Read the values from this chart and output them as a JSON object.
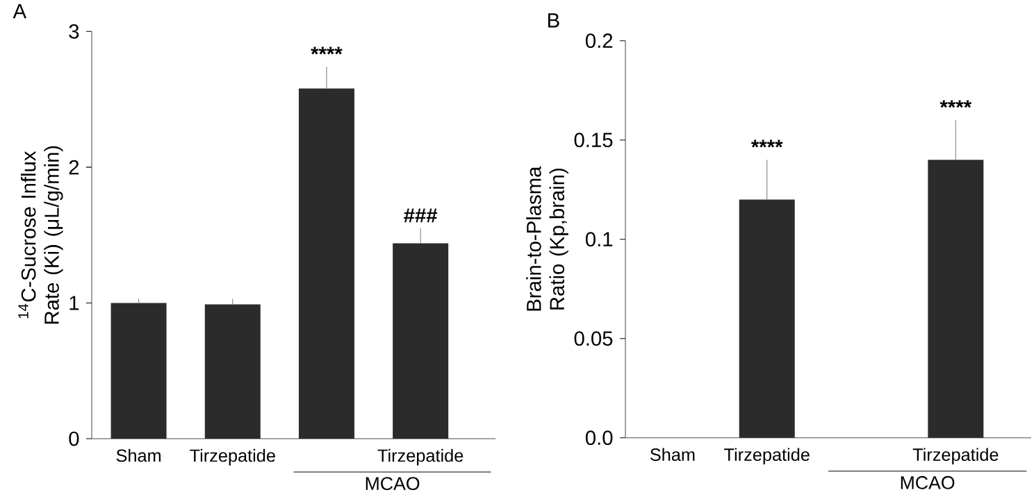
{
  "chart_data": [
    {
      "type": "bar",
      "title": "A",
      "ylabel": "$^{14}$C-Sucrose Influx Rate (Ki) (μL/g/min)",
      "categories": [
        "Sham",
        "Tirzepatide",
        null,
        "Tirzepatide"
      ],
      "values": [
        1.0,
        0.99,
        2.58,
        1.44
      ],
      "color": "#2b2b2b",
      "errors": [
        [
          1.0,
          1.03
        ],
        [
          0.99,
          1.03
        ],
        [
          2.58,
          2.74
        ],
        [
          1.44,
          1.55
        ]
      ],
      "value_labels": [
        null,
        null,
        "****",
        "###"
      ],
      "ylim": [
        0,
        3
      ],
      "yticks": [
        0,
        1,
        2,
        3
      ],
      "annotations": [
        "MCAO"
      ]
    },
    {
      "type": "bar",
      "title": "B",
      "ylabel": "Brain-to-Plasma Ratio (Kp,brain)",
      "categories": [
        "Sham",
        "Tirzepatide",
        null,
        "Tirzepatide"
      ],
      "values": [
        null,
        0.12,
        null,
        0.14
      ],
      "color": "#2b2b2b",
      "errors": [
        null,
        [
          0.12,
          0.14
        ],
        null,
        [
          0.14,
          0.16
        ]
      ],
      "value_labels": [
        null,
        "****",
        null,
        "****"
      ],
      "ylim": [
        0,
        0.2
      ],
      "yticks": [
        {
          "value": 0,
          "label": "0.0"
        },
        0.05,
        0.1,
        0.15,
        0.2
      ],
      "annotations": [
        "MCAO"
      ]
    }
  ]
}
